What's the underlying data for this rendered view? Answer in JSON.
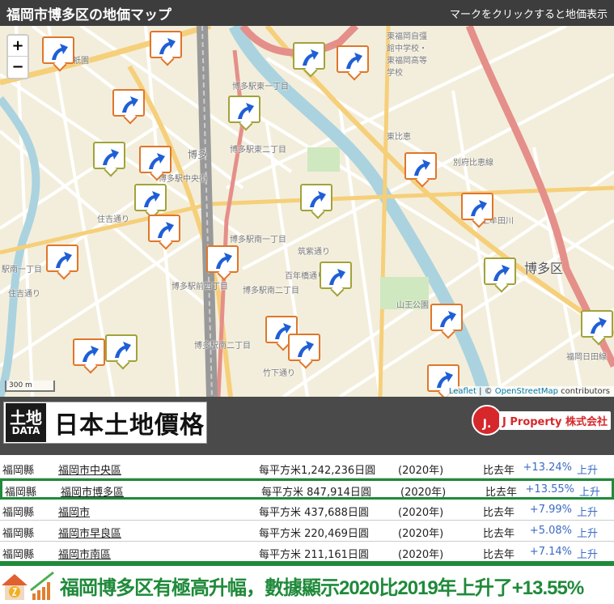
{
  "header": {
    "title": "福岡市博多区の地価マップ",
    "hint": "マークをクリックすると地価表示"
  },
  "map": {
    "zoom_in": "+",
    "zoom_out": "−",
    "scale": "300 m",
    "attribution": {
      "leaflet": "Leaflet",
      "sep": " | © ",
      "osm": "OpenStreetMap",
      "rest": " contributors"
    },
    "labels": [
      "祇園",
      "博多駅東一丁目",
      "博多駅東二丁目",
      "博多",
      "博多駅中央街",
      "住吉通り",
      "博多駅南一丁目",
      "博多駅前四丁目",
      "博多駅南二丁目",
      "博多駅南二丁目",
      "東福岡自彊館中学校・東福岡高等学校",
      "博多区",
      "山王公園",
      "東比恵",
      "別府比恵線",
      "上牟田川",
      "筑紫通り",
      "百年橋通り",
      "竹下通り",
      "福岡日田線",
      "駅南一丁目",
      "住吉通り"
    ],
    "markers": [
      {
        "c": "orange"
      },
      {
        "c": "orange"
      },
      {
        "c": "olive"
      },
      {
        "c": "orange"
      },
      {
        "c": "orange"
      },
      {
        "c": "olive"
      },
      {
        "c": "olive"
      },
      {
        "c": "orange"
      },
      {
        "c": "orange"
      },
      {
        "c": "olive"
      },
      {
        "c": "olive"
      },
      {
        "c": "orange"
      },
      {
        "c": "orange"
      },
      {
        "c": "orange"
      },
      {
        "c": "orange"
      },
      {
        "c": "olive"
      },
      {
        "c": "olive"
      },
      {
        "c": "orange"
      },
      {
        "c": "orange"
      },
      {
        "c": "orange"
      },
      {
        "c": "orange"
      },
      {
        "c": "olive"
      },
      {
        "c": "olive"
      },
      {
        "c": "orange"
      }
    ],
    "marker_icon": "up-arrow-icon"
  },
  "banner": {
    "logo_mark_top": "土地",
    "logo_mark_bottom": "DATA",
    "logo_text": "日本土地價格",
    "company_mark": "J.",
    "company": "J Property 株式会社"
  },
  "table": {
    "rows": [
      {
        "pref": "福岡縣",
        "city": "福岡市中央區",
        "price": "每平方米1,242,236日圓",
        "year": "(2020年)",
        "cmp": "比去年",
        "pct": "+13.24%",
        "trend": "上升"
      },
      {
        "pref": "福岡縣",
        "city": "福岡市博多區",
        "price": "每平方米 847,914日圓",
        "year": "(2020年)",
        "cmp": "比去年",
        "pct": "+13.55%",
        "trend": "上升",
        "highlight": true
      },
      {
        "pref": "福岡縣",
        "city": "福岡市",
        "price": "每平方米 437,688日圓",
        "year": "(2020年)",
        "cmp": "比去年",
        "pct": "+7.99%",
        "trend": "上升"
      },
      {
        "pref": "福岡縣",
        "city": "福岡市早良區",
        "price": "每平方米 220,469日圓",
        "year": "(2020年)",
        "cmp": "比去年",
        "pct": "+5.08%",
        "trend": "上升"
      },
      {
        "pref": "福岡縣",
        "city": "福岡市南區",
        "price": "每平方米 211,161日圓",
        "year": "(2020年)",
        "cmp": "比去年",
        "pct": "+7.14%",
        "trend": "上升"
      }
    ]
  },
  "footer": {
    "message": "福岡博多区有極高升幅，數據顯示2020比2019年上升了+13.55%"
  },
  "colors": {
    "accent_green": "#1f8a3a",
    "marker_orange": "#e0762a",
    "marker_olive": "#a2a23a",
    "arrow_blue": "#1f5fd6",
    "pct_blue": "#3b6bc4"
  }
}
